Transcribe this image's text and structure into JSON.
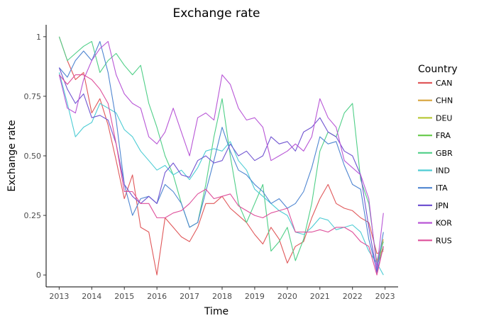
{
  "chart_data": {
    "type": "line",
    "title": "Exchange rate",
    "xlabel": "Time",
    "ylabel": "Exchange rate",
    "legend_title": "Country",
    "legend_position": "right",
    "grid": false,
    "xlim": [
      2012.6,
      2023.4
    ],
    "ylim": [
      -0.05,
      1.05
    ],
    "x_ticks": [
      2013,
      2014,
      2015,
      2016,
      2017,
      2018,
      2019,
      2020,
      2021,
      2022,
      2023
    ],
    "x_tick_labels": [
      "2013",
      "2014",
      "2015",
      "2016",
      "2017",
      "2018",
      "2019",
      "2020",
      "2021",
      "2022",
      "2023"
    ],
    "y_ticks": [
      0,
      0.25,
      0.5,
      0.75,
      1
    ],
    "y_tick_labels": [
      "0",
      "0.25",
      "0.50",
      "0.75",
      "1"
    ],
    "series": [
      {
        "name": "CAN",
        "color": "#e0585a",
        "x": [
          2013.0,
          2013.25,
          2013.5,
          2013.75,
          2014.0,
          2014.25,
          2014.5,
          2014.75,
          2015.0,
          2015.25,
          2015.5,
          2015.75,
          2016.0,
          2016.25,
          2016.5,
          2016.75,
          2017.0,
          2017.25,
          2017.5,
          2017.75,
          2018.0,
          2018.25,
          2018.5,
          2018.75,
          2019.0,
          2019.25,
          2019.5,
          2019.75,
          2020.0,
          2020.25,
          2020.5,
          2020.75,
          2021.0,
          2021.25,
          2021.5,
          2021.75,
          2022.0,
          2022.25,
          2022.5,
          2022.75,
          2022.95
        ],
        "y": [
          1.0,
          0.9,
          0.82,
          0.85,
          0.68,
          0.74,
          0.63,
          0.48,
          0.32,
          0.42,
          0.2,
          0.18,
          0.0,
          0.24,
          0.2,
          0.16,
          0.14,
          0.2,
          0.3,
          0.3,
          0.33,
          0.28,
          0.25,
          0.22,
          0.17,
          0.13,
          0.2,
          0.15,
          0.05,
          0.12,
          0.14,
          0.24,
          0.32,
          0.38,
          0.3,
          0.28,
          0.27,
          0.24,
          0.22,
          0.09,
          0.1
        ]
      },
      {
        "name": "CHN",
        "color": "#d7a43a",
        "x": [
          2022.75,
          2022.95
        ],
        "y": [
          0.06,
          0.15
        ]
      },
      {
        "name": "DEU",
        "color": "#b9c93b",
        "x": [
          2022.75,
          2022.95
        ],
        "y": [
          0.05,
          0.12
        ]
      },
      {
        "name": "FRA",
        "color": "#6ccc51",
        "x": [
          2022.75,
          2022.95
        ],
        "y": [
          0.04,
          0.11
        ]
      },
      {
        "name": "GBR",
        "color": "#4fcf87",
        "x": [
          2013.0,
          2013.25,
          2013.5,
          2013.75,
          2014.0,
          2014.25,
          2014.5,
          2014.75,
          2015.0,
          2015.25,
          2015.5,
          2015.75,
          2016.0,
          2016.25,
          2016.5,
          2016.75,
          2017.0,
          2017.25,
          2017.5,
          2017.75,
          2018.0,
          2018.25,
          2018.5,
          2018.75,
          2019.0,
          2019.25,
          2019.5,
          2019.75,
          2020.0,
          2020.25,
          2020.5,
          2020.75,
          2021.0,
          2021.25,
          2021.5,
          2021.75,
          2022.0,
          2022.25,
          2022.5,
          2022.75,
          2022.95
        ],
        "y": [
          1.0,
          0.9,
          0.93,
          0.96,
          0.98,
          0.85,
          0.9,
          0.93,
          0.88,
          0.84,
          0.88,
          0.72,
          0.62,
          0.5,
          0.42,
          0.3,
          0.2,
          0.22,
          0.38,
          0.58,
          0.74,
          0.5,
          0.3,
          0.22,
          0.3,
          0.38,
          0.1,
          0.14,
          0.2,
          0.06,
          0.15,
          0.3,
          0.52,
          0.6,
          0.58,
          0.68,
          0.72,
          0.4,
          0.3,
          0.05,
          0.14
        ]
      },
      {
        "name": "IND",
        "color": "#4dccd4",
        "x": [
          2013.0,
          2013.25,
          2013.5,
          2013.75,
          2014.0,
          2014.25,
          2014.5,
          2014.75,
          2015.0,
          2015.25,
          2015.5,
          2015.75,
          2016.0,
          2016.25,
          2016.5,
          2016.75,
          2017.0,
          2017.25,
          2017.5,
          2017.75,
          2018.0,
          2018.25,
          2018.5,
          2018.75,
          2019.0,
          2019.25,
          2019.5,
          2019.75,
          2020.0,
          2020.25,
          2020.5,
          2020.75,
          2021.0,
          2021.25,
          2021.5,
          2021.75,
          2022.0,
          2022.25,
          2022.5,
          2022.75,
          2022.95
        ],
        "y": [
          0.85,
          0.72,
          0.58,
          0.62,
          0.64,
          0.72,
          0.7,
          0.68,
          0.61,
          0.58,
          0.52,
          0.48,
          0.44,
          0.46,
          0.42,
          0.44,
          0.4,
          0.45,
          0.52,
          0.53,
          0.52,
          0.56,
          0.48,
          0.44,
          0.36,
          0.33,
          0.3,
          0.27,
          0.25,
          0.18,
          0.17,
          0.2,
          0.24,
          0.23,
          0.19,
          0.2,
          0.21,
          0.18,
          0.1,
          0.05,
          0.0
        ]
      },
      {
        "name": "ITA",
        "color": "#4f86d1",
        "x": [
          2013.0,
          2013.25,
          2013.5,
          2013.75,
          2014.0,
          2014.25,
          2014.5,
          2014.75,
          2015.0,
          2015.25,
          2015.5,
          2015.75,
          2016.0,
          2016.25,
          2016.5,
          2016.75,
          2017.0,
          2017.25,
          2017.5,
          2017.75,
          2018.0,
          2018.25,
          2018.5,
          2018.75,
          2019.0,
          2019.25,
          2019.5,
          2019.75,
          2020.0,
          2020.25,
          2020.5,
          2020.75,
          2021.0,
          2021.25,
          2021.5,
          2021.75,
          2022.0,
          2022.25,
          2022.5,
          2022.75,
          2022.95
        ],
        "y": [
          0.87,
          0.83,
          0.9,
          0.94,
          0.9,
          0.98,
          0.85,
          0.65,
          0.38,
          0.25,
          0.32,
          0.33,
          0.3,
          0.38,
          0.35,
          0.3,
          0.2,
          0.22,
          0.35,
          0.48,
          0.62,
          0.52,
          0.44,
          0.42,
          0.38,
          0.35,
          0.3,
          0.32,
          0.28,
          0.3,
          0.35,
          0.45,
          0.58,
          0.55,
          0.56,
          0.46,
          0.38,
          0.36,
          0.15,
          0.02,
          0.18
        ]
      },
      {
        "name": "JPN",
        "color": "#7155d1",
        "x": [
          2013.0,
          2013.25,
          2013.5,
          2013.75,
          2014.0,
          2014.25,
          2014.5,
          2014.75,
          2015.0,
          2015.25,
          2015.5,
          2015.75,
          2016.0,
          2016.25,
          2016.5,
          2016.75,
          2017.0,
          2017.25,
          2017.5,
          2017.75,
          2018.0,
          2018.25,
          2018.5,
          2018.75,
          2019.0,
          2019.25,
          2019.5,
          2019.75,
          2020.0,
          2020.25,
          2020.5,
          2020.75,
          2021.0,
          2021.25,
          2021.5,
          2021.75,
          2022.0,
          2022.25,
          2022.5,
          2022.75,
          2022.95
        ],
        "y": [
          0.87,
          0.78,
          0.72,
          0.76,
          0.66,
          0.67,
          0.65,
          0.55,
          0.38,
          0.33,
          0.3,
          0.33,
          0.3,
          0.43,
          0.47,
          0.42,
          0.41,
          0.48,
          0.5,
          0.47,
          0.48,
          0.55,
          0.5,
          0.52,
          0.48,
          0.5,
          0.58,
          0.55,
          0.56,
          0.52,
          0.6,
          0.62,
          0.66,
          0.6,
          0.58,
          0.52,
          0.5,
          0.42,
          0.2,
          0.01,
          0.12
        ]
      },
      {
        "name": "KOR",
        "color": "#b856d6",
        "x": [
          2013.0,
          2013.25,
          2013.5,
          2013.75,
          2014.0,
          2014.25,
          2014.5,
          2014.75,
          2015.0,
          2015.25,
          2015.5,
          2015.75,
          2016.0,
          2016.25,
          2016.5,
          2016.75,
          2017.0,
          2017.25,
          2017.5,
          2017.75,
          2018.0,
          2018.25,
          2018.5,
          2018.75,
          2019.0,
          2019.25,
          2019.5,
          2019.75,
          2020.0,
          2020.25,
          2020.5,
          2020.75,
          2021.0,
          2021.25,
          2021.5,
          2021.75,
          2022.0,
          2022.25,
          2022.5,
          2022.75,
          2022.95
        ],
        "y": [
          0.84,
          0.7,
          0.68,
          0.82,
          0.9,
          0.95,
          0.98,
          0.84,
          0.76,
          0.72,
          0.7,
          0.58,
          0.55,
          0.6,
          0.7,
          0.6,
          0.5,
          0.66,
          0.68,
          0.65,
          0.84,
          0.8,
          0.7,
          0.65,
          0.66,
          0.62,
          0.48,
          0.5,
          0.52,
          0.55,
          0.52,
          0.58,
          0.74,
          0.66,
          0.62,
          0.48,
          0.45,
          0.42,
          0.32,
          0.03,
          0.26
        ]
      },
      {
        "name": "RUS",
        "color": "#de4f9a",
        "x": [
          2013.0,
          2013.25,
          2013.5,
          2013.75,
          2014.0,
          2014.25,
          2014.5,
          2014.75,
          2015.0,
          2015.25,
          2015.5,
          2015.75,
          2016.0,
          2016.25,
          2016.5,
          2016.75,
          2017.0,
          2017.25,
          2017.5,
          2017.75,
          2018.0,
          2018.25,
          2018.5,
          2018.75,
          2019.0,
          2019.25,
          2019.5,
          2019.75,
          2020.0,
          2020.25,
          2020.5,
          2020.75,
          2021.0,
          2021.25,
          2021.5,
          2021.75,
          2022.0,
          2022.25,
          2022.5,
          2022.75,
          2022.95
        ],
        "y": [
          0.84,
          0.8,
          0.84,
          0.84,
          0.82,
          0.78,
          0.72,
          0.55,
          0.35,
          0.35,
          0.3,
          0.3,
          0.24,
          0.24,
          0.26,
          0.27,
          0.3,
          0.34,
          0.36,
          0.32,
          0.33,
          0.34,
          0.29,
          0.27,
          0.25,
          0.24,
          0.26,
          0.27,
          0.28,
          0.18,
          0.18,
          0.18,
          0.19,
          0.18,
          0.2,
          0.2,
          0.18,
          0.14,
          0.12,
          0.0,
          0.12
        ]
      }
    ]
  }
}
